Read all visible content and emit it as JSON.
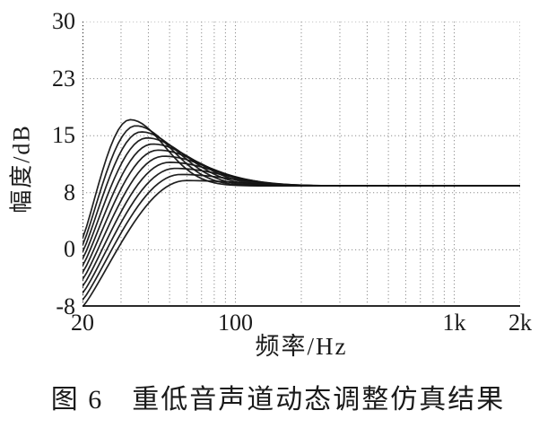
{
  "figure": {
    "caption": "图 6　重低音声道动态调整仿真结果"
  },
  "chart_data": {
    "type": "line",
    "title": "",
    "xlabel": "频率/Hz",
    "ylabel": "幅度/dB",
    "x_scale": "log",
    "xlim_hz": [
      20,
      2000
    ],
    "ylim_db": [
      -7.5,
      30
    ],
    "grid": "dotted",
    "legend": null,
    "x_ticks": [
      {
        "value": 20,
        "label": "20"
      },
      {
        "value": 100,
        "label": "100"
      },
      {
        "value": 1000,
        "label": "1k"
      },
      {
        "value": 2000,
        "label": "2k"
      }
    ],
    "y_ticks": [
      {
        "value": -7.5,
        "label": "-8"
      },
      {
        "value": 0,
        "label": "0"
      },
      {
        "value": 7.5,
        "label": "8"
      },
      {
        "value": 15,
        "label": "15"
      },
      {
        "value": 22.5,
        "label": "23"
      },
      {
        "value": 30,
        "label": "30"
      }
    ],
    "x_gridlines_hz": [
      30,
      40,
      50,
      60,
      70,
      80,
      90,
      100,
      200,
      300,
      400,
      500,
      600,
      700,
      800,
      900,
      1000,
      2000
    ],
    "y_gridlines_db": [
      0,
      7.5,
      15,
      22.5,
      30
    ],
    "num_curves": 11,
    "hf_asymptote_db": 8.4,
    "curve_model": {
      "description": "Simulated subwoofer-channel dynamic-adjustment magnitude responses: each curve rises from its 20 Hz value to a resonant peak near 33-60 Hz, then decays to the shared high-frequency asymptote of 8.4 dB (all curves merge above ~150 Hz).",
      "rise_exponent": 1.15
    },
    "series": [
      {
        "name": "curve-01",
        "start_db_at_20hz": 1.5,
        "peak_db": 17.1,
        "peak_hz": 33.0,
        "decay_width_decades": 0.22
      },
      {
        "name": "curve-02",
        "start_db_at_20hz": 0.6,
        "peak_db": 16.3,
        "peak_hz": 35.0,
        "decay_width_decades": 0.233
      },
      {
        "name": "curve-03",
        "start_db_at_20hz": -0.3,
        "peak_db": 15.5,
        "peak_hz": 37.1,
        "decay_width_decades": 0.246
      },
      {
        "name": "curve-04",
        "start_db_at_20hz": -1.2,
        "peak_db": 14.7,
        "peak_hz": 39.4,
        "decay_width_decades": 0.259
      },
      {
        "name": "curve-05",
        "start_db_at_20hz": -2.1,
        "peak_db": 13.9,
        "peak_hz": 41.8,
        "decay_width_decades": 0.272
      },
      {
        "name": "curve-06",
        "start_db_at_20hz": -3.0,
        "peak_db": 13.1,
        "peak_hz": 44.3,
        "decay_width_decades": 0.285
      },
      {
        "name": "curve-07",
        "start_db_at_20hz": -3.9,
        "peak_db": 12.3,
        "peak_hz": 47.0,
        "decay_width_decades": 0.298
      },
      {
        "name": "curve-08",
        "start_db_at_20hz": -4.8,
        "peak_db": 11.5,
        "peak_hz": 49.9,
        "decay_width_decades": 0.311
      },
      {
        "name": "curve-09",
        "start_db_at_20hz": -5.7,
        "peak_db": 10.7,
        "peak_hz": 52.9,
        "decay_width_decades": 0.324
      },
      {
        "name": "curve-10",
        "start_db_at_20hz": -6.6,
        "peak_db": 9.9,
        "peak_hz": 56.1,
        "decay_width_decades": 0.337
      },
      {
        "name": "curve-11",
        "start_db_at_20hz": -7.5,
        "peak_db": 9.1,
        "peak_hz": 59.5,
        "decay_width_decades": 0.35
      }
    ],
    "colors": {
      "background": "#ffffff",
      "axis": "#2a2a2a",
      "grid": "#8f8f8f",
      "curve": "#141414",
      "text": "#1a1a1a"
    }
  }
}
